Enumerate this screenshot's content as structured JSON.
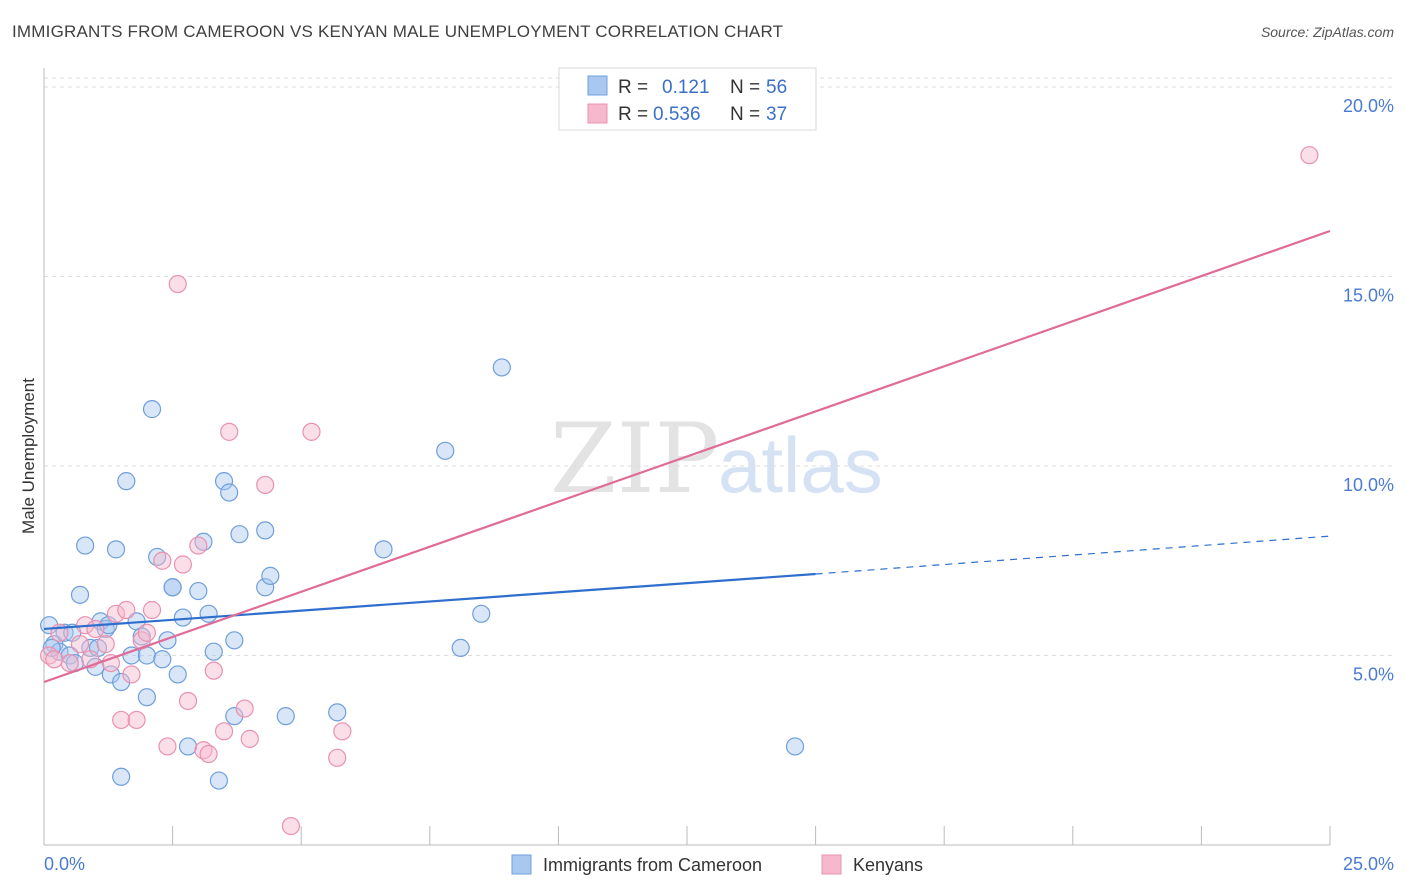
{
  "header": {
    "title": "IMMIGRANTS FROM CAMEROON VS KENYAN MALE UNEMPLOYMENT CORRELATION CHART",
    "source": "Source: ZipAtlas.com"
  },
  "watermark": {
    "zip": "ZIP",
    "atlas": "atlas"
  },
  "colors": {
    "blue_fill": "#a9c8f0",
    "blue_stroke": "#6f9fdc",
    "blue_line": "#2e6fce",
    "pink_fill": "#f6b8cc",
    "pink_stroke": "#e991b0",
    "pink_line": "#e06b97",
    "tick_text": "#4a7bd0",
    "grid": "#dddddd"
  },
  "chart_data": {
    "type": "scatter",
    "title": "",
    "xlabel": "",
    "ylabel": "Male Unemployment",
    "xlim": [
      0,
      25
    ],
    "ylim": [
      0,
      20.5
    ],
    "x_tick_labels": [
      "0.0%",
      "25.0%"
    ],
    "y_ticks": [
      5,
      10,
      15,
      20
    ],
    "y_tick_labels": [
      "5.0%",
      "10.0%",
      "15.0%",
      "20.0%"
    ],
    "grid": true,
    "legend_top": [
      {
        "r_label": "R =",
        "r_value": "0.121",
        "n_label": "N =",
        "n_value": "56"
      },
      {
        "r_label": "R =",
        "r_value": "0.536",
        "n_label": "N =",
        "n_value": "37"
      }
    ],
    "series": [
      {
        "name": "Immigrants from Cameroon",
        "color": "#a9c8f0",
        "trend": {
          "x0": 0,
          "y0": 5.7,
          "x1": 15,
          "y1": 7.15,
          "dash_x1": 25,
          "dash_y1": 8.15
        },
        "points": [
          [
            0.1,
            5.8
          ],
          [
            0.2,
            5.3
          ],
          [
            0.3,
            5.1
          ],
          [
            0.4,
            5.6
          ],
          [
            0.5,
            5.0
          ],
          [
            0.6,
            4.8
          ],
          [
            0.7,
            6.6
          ],
          [
            0.8,
            7.9
          ],
          [
            0.9,
            5.2
          ],
          [
            1.0,
            4.7
          ],
          [
            1.1,
            5.9
          ],
          [
            1.2,
            5.7
          ],
          [
            1.3,
            4.5
          ],
          [
            1.4,
            7.8
          ],
          [
            1.5,
            4.3
          ],
          [
            1.5,
            1.8
          ],
          [
            1.6,
            9.6
          ],
          [
            1.7,
            5.0
          ],
          [
            1.8,
            5.9
          ],
          [
            1.9,
            5.5
          ],
          [
            2.0,
            5.0
          ],
          [
            2.0,
            3.9
          ],
          [
            2.1,
            11.5
          ],
          [
            2.2,
            7.6
          ],
          [
            2.3,
            4.9
          ],
          [
            2.4,
            5.4
          ],
          [
            2.5,
            6.8
          ],
          [
            2.5,
            6.8
          ],
          [
            2.6,
            4.5
          ],
          [
            2.7,
            6.0
          ],
          [
            2.8,
            2.6
          ],
          [
            3.0,
            6.7
          ],
          [
            3.1,
            8.0
          ],
          [
            3.2,
            6.1
          ],
          [
            3.3,
            5.1
          ],
          [
            3.4,
            1.7
          ],
          [
            3.5,
            9.6
          ],
          [
            3.6,
            9.3
          ],
          [
            3.7,
            5.4
          ],
          [
            3.7,
            3.4
          ],
          [
            3.8,
            8.2
          ],
          [
            4.3,
            8.3
          ],
          [
            4.3,
            6.8
          ],
          [
            4.4,
            7.1
          ],
          [
            4.7,
            3.4
          ],
          [
            5.7,
            3.5
          ],
          [
            6.6,
            7.8
          ],
          [
            7.8,
            10.4
          ],
          [
            8.1,
            5.2
          ],
          [
            8.5,
            6.1
          ],
          [
            8.9,
            12.6
          ],
          [
            14.6,
            2.6
          ],
          [
            0.15,
            5.2
          ],
          [
            1.25,
            5.8
          ],
          [
            1.05,
            5.2
          ],
          [
            0.55,
            5.6
          ]
        ]
      },
      {
        "name": "Kenyans",
        "color": "#f6b8cc",
        "trend": {
          "x0": 0,
          "y0": 4.3,
          "x1": 25,
          "y1": 16.2
        },
        "points": [
          [
            0.1,
            5.0
          ],
          [
            0.3,
            5.6
          ],
          [
            0.5,
            4.8
          ],
          [
            0.7,
            5.3
          ],
          [
            0.8,
            5.8
          ],
          [
            0.9,
            4.9
          ],
          [
            1.0,
            5.7
          ],
          [
            1.2,
            5.3
          ],
          [
            1.3,
            4.8
          ],
          [
            1.4,
            6.1
          ],
          [
            1.5,
            3.3
          ],
          [
            1.6,
            6.2
          ],
          [
            1.7,
            4.5
          ],
          [
            1.8,
            3.3
          ],
          [
            1.9,
            5.4
          ],
          [
            2.0,
            5.6
          ],
          [
            2.1,
            6.2
          ],
          [
            2.3,
            7.5
          ],
          [
            2.4,
            2.6
          ],
          [
            2.6,
            14.8
          ],
          [
            2.7,
            7.4
          ],
          [
            2.8,
            3.8
          ],
          [
            3.0,
            7.9
          ],
          [
            3.1,
            2.5
          ],
          [
            3.2,
            2.4
          ],
          [
            3.3,
            4.6
          ],
          [
            3.5,
            3.0
          ],
          [
            3.6,
            10.9
          ],
          [
            3.9,
            3.6
          ],
          [
            4.0,
            2.8
          ],
          [
            4.3,
            9.5
          ],
          [
            4.8,
            0.5
          ],
          [
            5.2,
            10.9
          ],
          [
            5.7,
            2.3
          ],
          [
            5.8,
            3.0
          ],
          [
            24.6,
            18.2
          ],
          [
            0.2,
            4.9
          ]
        ]
      }
    ]
  }
}
